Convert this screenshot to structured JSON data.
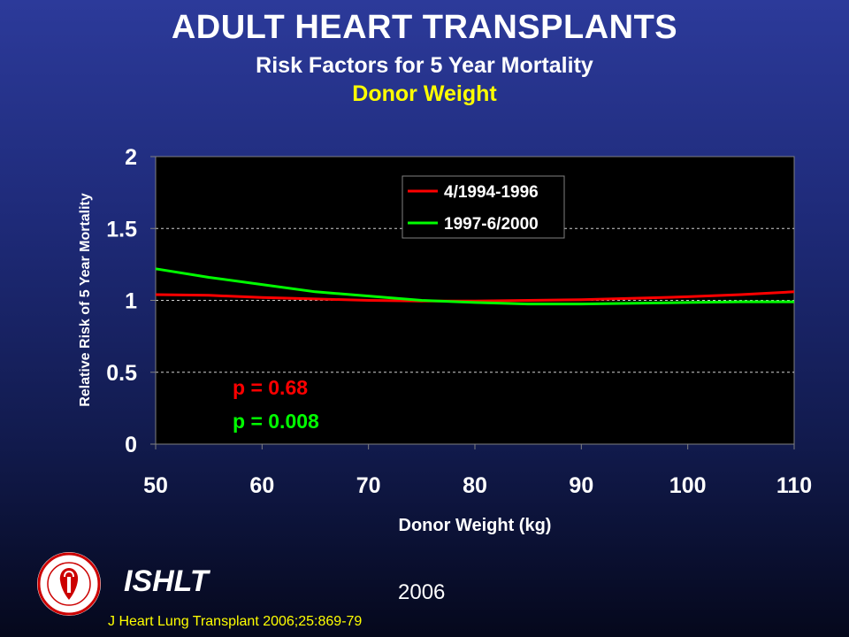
{
  "header": {
    "title": "ADULT HEART TRANSPLANTS",
    "subtitle": "Risk Factors for 5 Year Mortality",
    "variable": "Donor Weight"
  },
  "footer": {
    "organization": "ISHLT",
    "year": "2006",
    "citation": "J Heart Lung Transplant 2006;25:869-79"
  },
  "chart_data": {
    "type": "line",
    "xlabel": "Donor Weight (kg)",
    "ylabel": "Relative Risk of 5 Year Mortality",
    "xlim": [
      50,
      110
    ],
    "ylim": [
      0,
      2
    ],
    "xticks": [
      "50",
      "60",
      "70",
      "80",
      "90",
      "100",
      "110"
    ],
    "yticks": [
      "0",
      "0.5",
      "1",
      "1.5",
      "2"
    ],
    "grid": "horizontal dashed",
    "legend_position": "top-center",
    "series": [
      {
        "name": "4/1994-1996",
        "color": "#ff0000",
        "x": [
          50,
          55,
          60,
          65,
          70,
          75,
          80,
          85,
          90,
          95,
          100,
          105,
          110
        ],
        "y": [
          1.04,
          1.035,
          1.02,
          1.01,
          1.0,
          0.995,
          0.995,
          1.0,
          1.005,
          1.015,
          1.025,
          1.04,
          1.06
        ]
      },
      {
        "name": "1997-6/2000",
        "color": "#00ff00",
        "x": [
          50,
          55,
          60,
          65,
          70,
          75,
          80,
          85,
          90,
          95,
          100,
          105,
          110
        ],
        "y": [
          1.22,
          1.16,
          1.11,
          1.06,
          1.03,
          1.0,
          0.985,
          0.975,
          0.975,
          0.98,
          0.985,
          0.99,
          0.99
        ]
      }
    ],
    "annotations": [
      {
        "text": "p = 0.68",
        "color": "#ff0000"
      },
      {
        "text": "p = 0.008",
        "color": "#00ff00"
      }
    ]
  }
}
